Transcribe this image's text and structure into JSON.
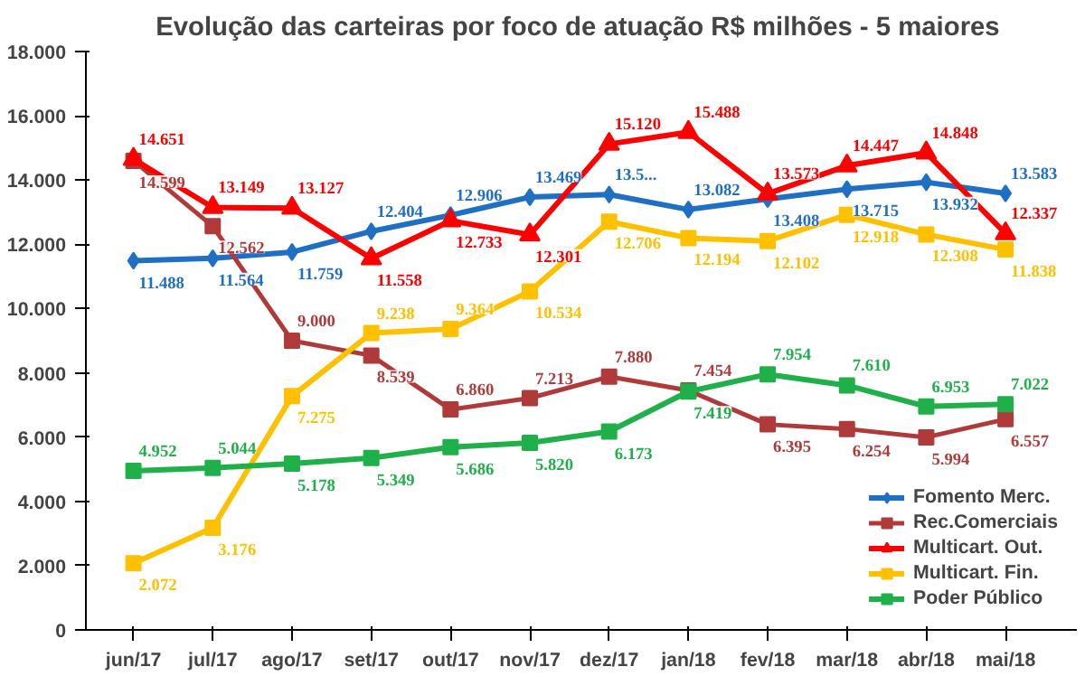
{
  "chart_data": {
    "type": "line",
    "title": "Evolução das carteiras por foco de atuação R$ milhões  - 5 maiores",
    "categories": [
      "jun/17",
      "jul/17",
      "ago/17",
      "set/17",
      "out/17",
      "nov/17",
      "dez/17",
      "jan/18",
      "fev/18",
      "mar/18",
      "abr/18",
      "mai/18"
    ],
    "ylim": [
      0,
      18000
    ],
    "yticks": [
      {
        "value": 0,
        "label": "0"
      },
      {
        "value": 2000,
        "label": "2.000"
      },
      {
        "value": 4000,
        "label": "4.000"
      },
      {
        "value": 6000,
        "label": "6.000"
      },
      {
        "value": 8000,
        "label": "8.000"
      },
      {
        "value": 10000,
        "label": "10.000"
      },
      {
        "value": 12000,
        "label": "12.000"
      },
      {
        "value": 14000,
        "label": "14.000"
      },
      {
        "value": 16000,
        "label": "16.000"
      },
      {
        "value": 18000,
        "label": "18.000"
      }
    ],
    "grid": false,
    "legend": "bottom right",
    "series": [
      {
        "name": "Fomento Merc.",
        "color": "#1f6fc5",
        "marker": "diamond",
        "values": [
          11488,
          11564,
          11759,
          12404,
          12906,
          13469,
          13550,
          13082,
          13408,
          13715,
          13932,
          13583
        ],
        "value_labels": [
          "11.488",
          "11.564",
          "11.759",
          "12.404",
          "12.906",
          "13.469",
          "13.5...",
          "13.082",
          "13.408",
          "13.715",
          "13.932",
          "13.583"
        ]
      },
      {
        "name": "Rec.Comerciais",
        "color": "#b03a3a",
        "marker": "square",
        "values": [
          14599,
          12562,
          9000,
          8539,
          6860,
          7213,
          7880,
          7454,
          6395,
          6254,
          5994,
          6557
        ],
        "value_labels": [
          "14.599",
          "12.562",
          "9.000",
          "8.539",
          "6.860",
          "7.213",
          "7.880",
          "7.454",
          "6.395",
          "6.254",
          "5.994",
          "6.557"
        ]
      },
      {
        "name": "Multicart. Out.",
        "color": "#ff0000",
        "marker": "triangle",
        "values": [
          14651,
          13149,
          13127,
          11558,
          12733,
          12301,
          15120,
          15488,
          13573,
          14447,
          14848,
          12337
        ],
        "value_labels": [
          "14.651",
          "13.149",
          "13.127",
          "11.558",
          "12.733",
          "12.301",
          "15.120",
          "15.488",
          "13.573",
          "14.447",
          "14.848",
          "12.337"
        ]
      },
      {
        "name": "Multicart. Fin.",
        "color": "#ffc000",
        "marker": "square",
        "values": [
          2072,
          3176,
          7275,
          9238,
          9364,
          10534,
          12706,
          12194,
          12102,
          12918,
          12308,
          11838
        ],
        "value_labels": [
          "2.072",
          "3.176",
          "7.275",
          "9.238",
          "9.364",
          "10.534",
          "12.706",
          "12.194",
          "12.102",
          "12.918",
          "12.308",
          "11.838"
        ]
      },
      {
        "name": "Poder Público",
        "color": "#1fb04a",
        "marker": "square",
        "values": [
          4952,
          5044,
          5178,
          5349,
          5686,
          5820,
          6173,
          7419,
          7954,
          7610,
          6953,
          7022
        ],
        "value_labels": [
          "4.952",
          "5.044",
          "5.178",
          "5.349",
          "5.686",
          "5.820",
          "6.173",
          "7.419",
          "7.954",
          "7.610",
          "6.953",
          "7.022"
        ]
      }
    ]
  }
}
